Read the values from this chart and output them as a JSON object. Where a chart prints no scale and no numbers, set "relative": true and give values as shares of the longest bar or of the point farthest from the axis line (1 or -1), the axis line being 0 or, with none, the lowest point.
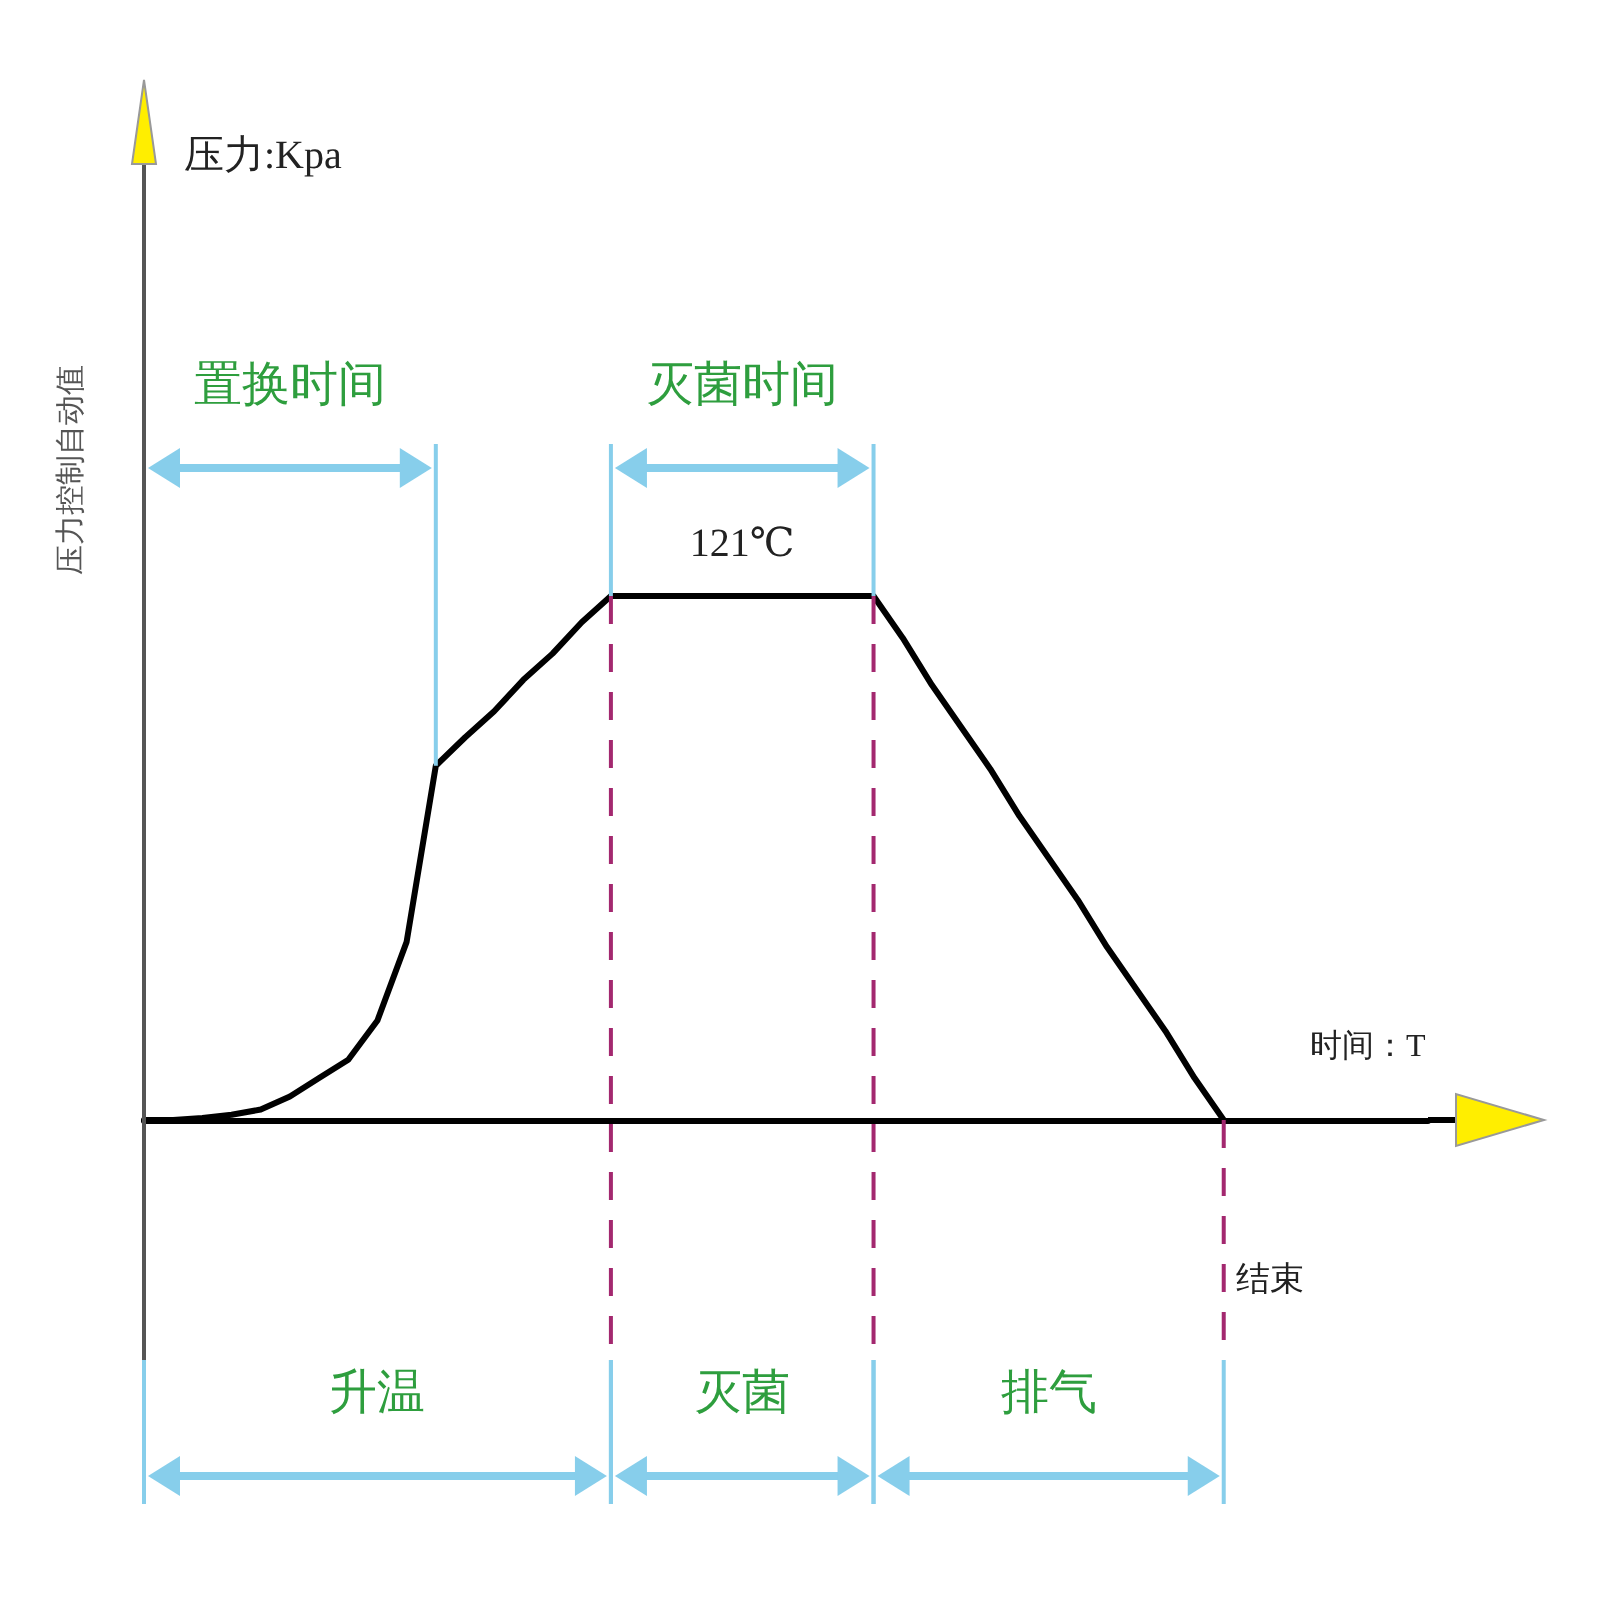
{
  "chart_data": {
    "type": "line",
    "relative": true,
    "xlabel": "时间：T",
    "marker": "none",
    "categories": [
      null,
      null,
      null,
      null,
      null,
      null,
      null,
      null,
      null,
      null,
      null,
      null,
      null,
      null,
      null,
      null,
      null,
      null,
      null,
      null,
      null,
      null,
      null,
      null,
      null,
      null,
      null,
      null,
      null,
      null,
      null,
      null,
      null,
      null,
      null,
      null,
      null,
      null,
      null,
      null,
      null,
      null,
      null,
      null,
      null
    ],
    "series": [
      {
        "color": "#000000",
        "values": [
          0,
          0,
          0.004,
          0.01,
          0.02,
          0.045,
          0.08,
          0.115,
          0.19,
          0.34,
          0.676,
          0.73,
          0.78,
          0.84,
          0.89,
          0.95,
          1,
          1,
          1,
          1,
          1,
          1,
          1,
          1,
          1,
          1,
          0.92,
          0.83,
          0.75,
          0.67,
          0.58,
          0.5,
          0.42,
          0.33,
          0.25,
          0.17,
          0.08,
          0,
          null,
          null,
          null,
          null,
          null,
          null,
          null
        ]
      }
    ],
    "annotations": [
      "压力:Kpa",
      "压力控制自动值",
      {
        "text": "121℃",
        "y": 1
      },
      "置换时间",
      "灭菌时间",
      "升温",
      "灭菌",
      "排气",
      "结束"
    ]
  }
}
